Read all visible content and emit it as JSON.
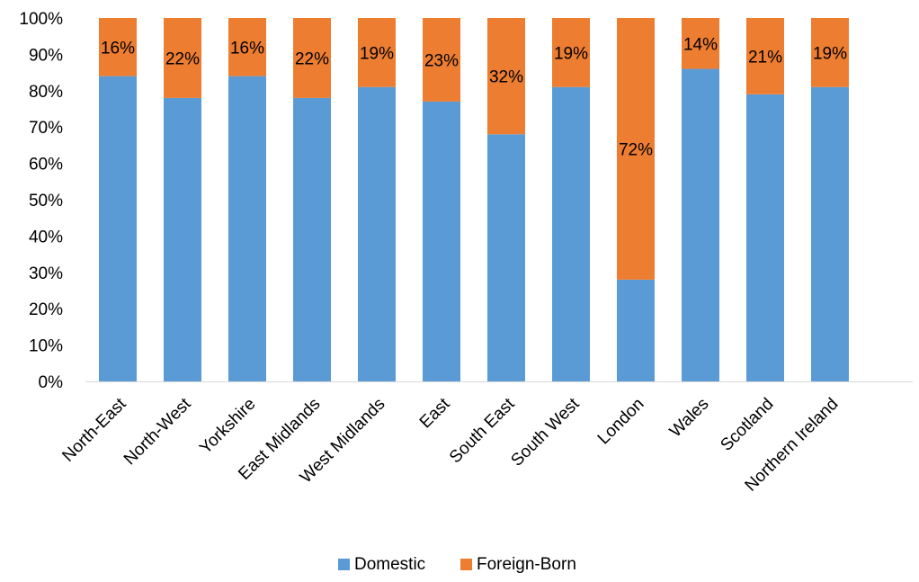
{
  "chart_data": {
    "type": "bar",
    "stacked": true,
    "percent_stacked": true,
    "categories": [
      "North-East",
      "North-West",
      "Yorkshire",
      "East  Midlands",
      "West Midlands",
      "East",
      "South East",
      "South West",
      "London",
      "Wales",
      "Scotland",
      "Northern Ireland"
    ],
    "series": [
      {
        "name": "Domestic",
        "color": "#5b9bd5",
        "values": [
          84,
          78,
          84,
          78,
          81,
          77,
          68,
          81,
          28,
          86,
          79,
          81
        ]
      },
      {
        "name": "Foreign-Born",
        "color": "#ed7d31",
        "values": [
          16,
          22,
          16,
          22,
          19,
          23,
          32,
          19,
          72,
          14,
          21,
          19
        ]
      }
    ],
    "data_labels": [
      "16%",
      "22%",
      "16%",
      "22%",
      "19%",
      "23%",
      "32%",
      "19%",
      "72%",
      "14%",
      "21%",
      "19%"
    ],
    "y_ticks": [
      "0%",
      "10%",
      "20%",
      "30%",
      "40%",
      "50%",
      "60%",
      "70%",
      "80%",
      "90%",
      "100%"
    ],
    "ylim": [
      0,
      100
    ],
    "title": "",
    "xlabel": "",
    "ylabel": "",
    "grid": false,
    "legend_position": "bottom"
  }
}
